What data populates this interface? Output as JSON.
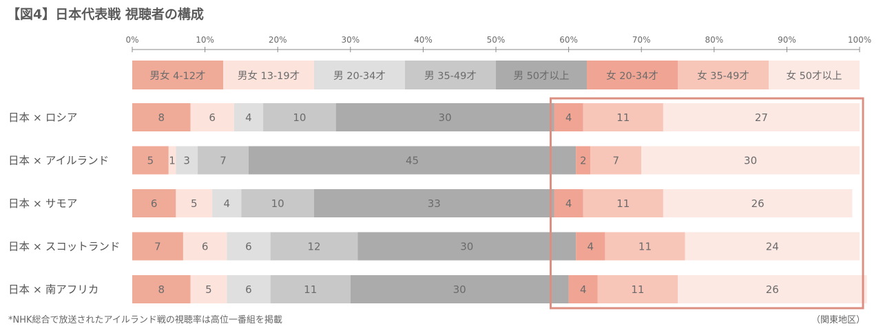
{
  "title": "【図4】日本代表戦 視聴者の構成",
  "footnote": "*NHK総合で放送されたアイルランド戦の視聴率は高位一番組を掲載",
  "region_note": "（関東地区）",
  "chart_data": {
    "type": "bar",
    "orientation": "horizontal",
    "stacked": true,
    "title": "【図4】日本代表戦 視聴者の構成",
    "xlim": [
      0,
      100
    ],
    "x_ticks": [
      "0%",
      "10%",
      "20%",
      "30%",
      "40%",
      "50%",
      "60%",
      "70%",
      "80%",
      "90%",
      "100%"
    ],
    "grid": false,
    "legend_position": "top",
    "categories": [
      "日本 × ロシア",
      "日本 × アイルランド",
      "日本 × サモア",
      "日本 × スコットランド",
      "日本 × 南アフリカ"
    ],
    "series": [
      {
        "name": "男女 4-12才",
        "color": "#f0aa98",
        "values": [
          8,
          5,
          6,
          7,
          8
        ]
      },
      {
        "name": "男女 13-19才",
        "color": "#fce3dc",
        "values": [
          6,
          1,
          5,
          6,
          5
        ]
      },
      {
        "name": "男 20-34才",
        "color": "#dfdfdf",
        "values": [
          4,
          3,
          4,
          6,
          6
        ]
      },
      {
        "name": "男 35-49才",
        "color": "#c8c8c8",
        "values": [
          10,
          7,
          10,
          12,
          11
        ]
      },
      {
        "name": "男 50才以上",
        "color": "#ababab",
        "values": [
          30,
          45,
          33,
          30,
          30
        ]
      },
      {
        "name": "女 20-34才",
        "color": "#f0a493",
        "values": [
          4,
          2,
          4,
          4,
          4
        ]
      },
      {
        "name": "女 35-49才",
        "color": "#f8c6b8",
        "values": [
          11,
          7,
          11,
          11,
          11
        ]
      },
      {
        "name": "女 50才以上",
        "color": "#fde9e4",
        "values": [
          27,
          30,
          26,
          24,
          26
        ]
      }
    ],
    "highlight_box": {
      "from_series": "女 20-34才",
      "color": "#dc8f80"
    }
  }
}
